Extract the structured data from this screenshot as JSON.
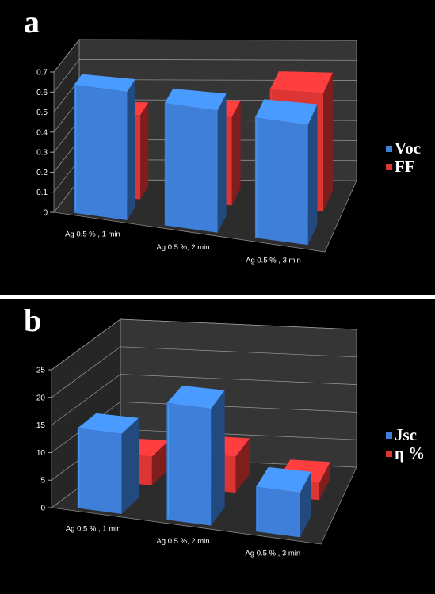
{
  "chart_data": [
    {
      "panel_label": "a",
      "type": "bar",
      "categories": [
        "Ag 0.5 % , 1 min",
        "Ag 0.5 %, 2 min",
        "Ag 0.5 % , 3 min"
      ],
      "series": [
        {
          "name": "Voc",
          "values": [
            0.64,
            0.61,
            0.6
          ],
          "color": "#3d7fd9"
        },
        {
          "name": "FF",
          "values": [
            0.42,
            0.44,
            0.59
          ],
          "color": "#dd3434"
        }
      ],
      "ylim": [
        0,
        0.7
      ],
      "yticks": [
        "0",
        "0.1",
        "0.2",
        "0.3",
        "0.4",
        "0.5",
        "0.6",
        "0.7"
      ],
      "grid": true,
      "legend": "right"
    },
    {
      "panel_label": "b",
      "type": "bar",
      "categories": [
        "Ag 0.5 % , 1 min",
        "Ag 0.5 %, 2 min",
        "Ag 0.5 % , 3 min"
      ],
      "series": [
        {
          "name": "Jsc",
          "values": [
            14.5,
            21.2,
            8.1
          ],
          "color": "#3d7fd9"
        },
        {
          "name": "η %",
          "values": [
            5.2,
            6.5,
            3.1
          ],
          "color": "#dd3434"
        }
      ],
      "ylim": [
        0,
        25
      ],
      "yticks": [
        "0",
        "5",
        "10",
        "15",
        "20",
        "25"
      ],
      "grid": true,
      "legend": "right"
    }
  ]
}
